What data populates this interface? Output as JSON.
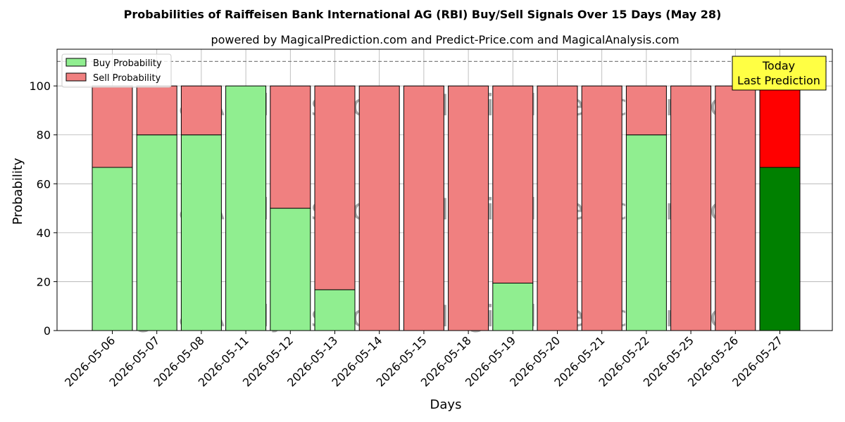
{
  "chart_data": {
    "type": "bar",
    "stacked": true,
    "title": "Probabilities of Raiffeisen Bank International AG (RBI) Buy/Sell Signals Over 15 Days (May 28)",
    "subtitle": "powered by MagicalPrediction.com and Predict-Price.com and MagicalAnalysis.com",
    "xlabel": "Days",
    "ylabel": "Probability",
    "ylim": [
      0,
      115
    ],
    "yticks": [
      0,
      20,
      40,
      60,
      80,
      100
    ],
    "grid": true,
    "legend_position": "top-left",
    "reference_line": 110,
    "categories": [
      "2026-05-06",
      "2026-05-07",
      "2026-05-08",
      "2026-05-11",
      "2026-05-12",
      "2026-05-13",
      "2026-05-14",
      "2026-05-15",
      "2026-05-18",
      "2026-05-19",
      "2026-05-20",
      "2026-05-21",
      "2026-05-22",
      "2026-05-25",
      "2026-05-26",
      "2026-05-27"
    ],
    "series": [
      {
        "name": "Buy Probability",
        "color": "#90ee90",
        "highlight_color": "#008000",
        "values": [
          66.7,
          80,
          80,
          100,
          50,
          16.7,
          0,
          0,
          0,
          19.4,
          0,
          0,
          80,
          0,
          0,
          66.7
        ]
      },
      {
        "name": "Sell Probability",
        "color": "#f08080",
        "highlight_color": "#ff0000",
        "values": [
          33.3,
          20,
          20,
          0,
          50,
          83.3,
          100,
          100,
          100,
          80.6,
          100,
          100,
          20,
          100,
          100,
          33.3
        ]
      }
    ],
    "highlight_index": 15,
    "annotation": {
      "line1": "Today",
      "line2": "Last Prediction",
      "background": "#ffff44"
    },
    "watermarks": [
      "MagicalAnalysis.com",
      "MagicalPrediction.com"
    ]
  }
}
